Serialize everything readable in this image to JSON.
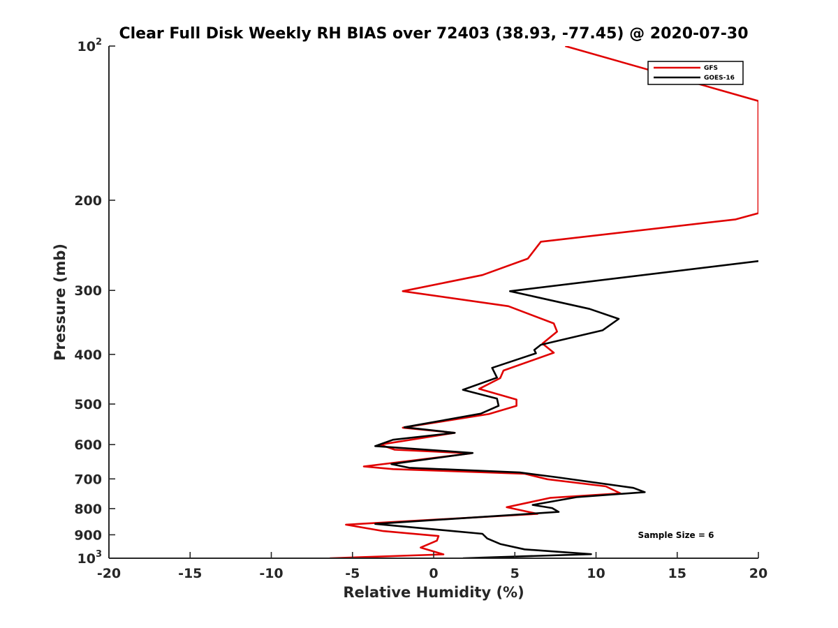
{
  "chart_data": {
    "type": "line",
    "title": "Clear Full Disk Weekly RH BIAS over 72403 (38.93, -77.45) @ 2020-07-30",
    "xlabel": "Relative Humidity (%)",
    "ylabel": "Pressure (mb)",
    "xlim": [
      -20,
      20
    ],
    "ylim": [
      100,
      1000
    ],
    "y_scale": "log",
    "y_reversed": true,
    "grid": false,
    "legend_position": "top-right",
    "x_ticks": [
      "-20",
      "-15",
      "-10",
      "-5",
      "0",
      "5",
      "10",
      "15",
      "20"
    ],
    "y_ticks": [
      {
        "value": 100,
        "base": "10",
        "exp": "2"
      },
      {
        "value": 200,
        "label": "200"
      },
      {
        "value": 300,
        "label": "300"
      },
      {
        "value": 400,
        "label": "400"
      },
      {
        "value": 500,
        "label": "500"
      },
      {
        "value": 600,
        "label": "600"
      },
      {
        "value": 700,
        "label": "700"
      },
      {
        "value": 800,
        "label": "800"
      },
      {
        "value": 900,
        "label": "900"
      },
      {
        "value": 1000,
        "base": "10",
        "exp": "3"
      }
    ],
    "annotation": "Sample Size = 6",
    "series": [
      {
        "name": "GFS",
        "color": "#e00000",
        "points": [
          [
            8.1,
            100
          ],
          [
            20,
            128
          ],
          [
            20,
            212
          ],
          [
            18.6,
            218
          ],
          [
            6.6,
            241
          ],
          [
            5.8,
            260
          ],
          [
            3.0,
            280
          ],
          [
            -1.9,
            301
          ],
          [
            4.6,
            322
          ],
          [
            7.4,
            348
          ],
          [
            7.6,
            361
          ],
          [
            6.7,
            381
          ],
          [
            7.4,
            397
          ],
          [
            4.3,
            430
          ],
          [
            4.1,
            445
          ],
          [
            2.8,
            467
          ],
          [
            5.1,
            490
          ],
          [
            5.1,
            504
          ],
          [
            3.4,
            523
          ],
          [
            -1.9,
            556
          ],
          [
            1.3,
            569
          ],
          [
            -3.3,
            600
          ],
          [
            -2.4,
            614
          ],
          [
            2.3,
            624
          ],
          [
            -4.3,
            662
          ],
          [
            -2.5,
            670
          ],
          [
            5.6,
            684
          ],
          [
            7.0,
            701
          ],
          [
            10.6,
            724
          ],
          [
            11.5,
            747
          ],
          [
            7.2,
            762
          ],
          [
            4.5,
            795
          ],
          [
            6.4,
            819
          ],
          [
            -5.4,
            860
          ],
          [
            -3.1,
            885
          ],
          [
            0.3,
            905
          ],
          [
            0.2,
            924
          ],
          [
            -0.8,
            953
          ],
          [
            0.6,
            983
          ],
          [
            -6.4,
            1000
          ]
        ]
      },
      {
        "name": "GOES-16",
        "color": "#000000",
        "points": [
          [
            20,
            263
          ],
          [
            4.7,
            301
          ],
          [
            9.6,
            326
          ],
          [
            11.4,
            341
          ],
          [
            10.4,
            359
          ],
          [
            6.6,
            383
          ],
          [
            6.2,
            392
          ],
          [
            6.3,
            398
          ],
          [
            3.6,
            425
          ],
          [
            3.9,
            444
          ],
          [
            1.8,
            469
          ],
          [
            3.9,
            488
          ],
          [
            4.0,
            504
          ],
          [
            2.9,
            522
          ],
          [
            -1.8,
            555
          ],
          [
            1.3,
            569
          ],
          [
            -2.5,
            587
          ],
          [
            -3.6,
            604
          ],
          [
            2.4,
            623
          ],
          [
            -2.6,
            655
          ],
          [
            -1.5,
            666
          ],
          [
            5.3,
            680
          ],
          [
            7.6,
            695
          ],
          [
            12.3,
            729
          ],
          [
            13.0,
            743
          ],
          [
            8.8,
            760
          ],
          [
            6.1,
            787
          ],
          [
            7.3,
            798
          ],
          [
            7.7,
            812
          ],
          [
            -3.6,
            857
          ],
          [
            3.0,
            896
          ],
          [
            3.3,
            915
          ],
          [
            4.1,
            938
          ],
          [
            5.6,
            961
          ],
          [
            9.7,
            982
          ],
          [
            1.8,
            1000
          ]
        ]
      }
    ]
  }
}
